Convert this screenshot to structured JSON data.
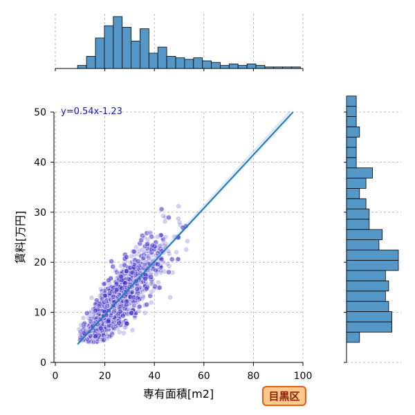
{
  "chart_data": {
    "type": "scatter",
    "xlabel": "専有面積[m2]",
    "ylabel": "賃料[万円]",
    "xlim": [
      0,
      100
    ],
    "ylim": [
      0,
      50
    ],
    "xticks": [
      "0",
      "20",
      "40",
      "60",
      "80",
      "100"
    ],
    "yticks": [
      "0",
      "10",
      "20",
      "30",
      "40",
      "50"
    ],
    "grid": true,
    "regression": {
      "slope": 0.54,
      "intercept": -1.23,
      "x_range": [
        9,
        96
      ],
      "label": "y=0.54x-1.23"
    },
    "badge": "目黒区",
    "colors": {
      "points": "#3c28c8",
      "line": "#1f77b4",
      "hist_fill": "#5597c7",
      "hist_edge": "#000000",
      "badge_bg": "#ffc88c",
      "badge_border": "#e65a14"
    },
    "marginal_x_hist": {
      "bin_start": 9,
      "bin_width": 3.6,
      "counts": [
        2,
        8,
        20,
        28,
        34,
        27,
        18,
        26,
        10,
        14,
        8,
        7,
        6,
        7,
        5,
        4,
        2,
        3,
        2,
        3,
        2,
        1,
        1,
        1,
        1
      ]
    },
    "marginal_y_hist": {
      "bin_start": 4,
      "bin_width": 2.05,
      "counts": [
        4,
        14,
        14,
        13,
        12,
        13,
        12,
        16,
        16,
        10,
        11,
        7,
        7,
        6,
        4,
        6,
        8,
        3,
        3,
        3,
        4,
        3,
        3,
        3
      ]
    }
  }
}
